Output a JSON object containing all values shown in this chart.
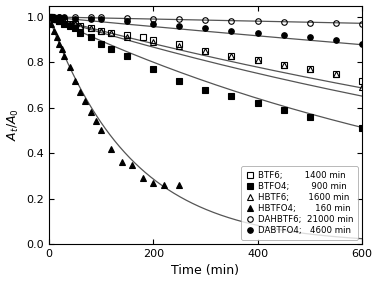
{
  "xlabel": "Time (min)",
  "ylabel": "A$_t$/A$_0$",
  "xlim": [
    0,
    600
  ],
  "ylim": [
    0.0,
    1.05
  ],
  "yticks": [
    0.0,
    0.2,
    0.4,
    0.6,
    0.8,
    1.0
  ],
  "xticks": [
    0,
    200,
    400,
    600
  ],
  "series": [
    {
      "label": "BTF6",
      "tau": 1400,
      "marker": "s",
      "filled": false,
      "data_x": [
        0,
        5,
        10,
        15,
        20,
        30,
        40,
        50,
        60,
        80,
        100,
        120,
        150,
        180,
        200,
        250,
        300,
        350,
        400,
        450,
        500,
        550,
        600
      ],
      "data_y": [
        1.0,
        1.0,
        0.99,
        0.99,
        0.98,
        0.98,
        0.97,
        0.97,
        0.96,
        0.95,
        0.94,
        0.93,
        0.92,
        0.91,
        0.9,
        0.88,
        0.85,
        0.83,
        0.81,
        0.79,
        0.77,
        0.75,
        0.72
      ]
    },
    {
      "label": "BTFO4",
      "tau": 900,
      "marker": "s",
      "filled": true,
      "data_x": [
        0,
        5,
        10,
        15,
        20,
        30,
        40,
        50,
        60,
        80,
        100,
        120,
        150,
        200,
        250,
        300,
        350,
        400,
        450,
        500,
        600
      ],
      "data_y": [
        1.0,
        1.0,
        0.99,
        0.99,
        0.98,
        0.97,
        0.96,
        0.95,
        0.93,
        0.91,
        0.88,
        0.86,
        0.83,
        0.77,
        0.72,
        0.68,
        0.65,
        0.62,
        0.59,
        0.56,
        0.51
      ]
    },
    {
      "label": "HBTF6",
      "tau": 1600,
      "marker": "^",
      "filled": false,
      "data_x": [
        0,
        5,
        10,
        15,
        20,
        30,
        40,
        50,
        60,
        80,
        100,
        120,
        150,
        200,
        250,
        300,
        350,
        400,
        450,
        500,
        550,
        600
      ],
      "data_y": [
        1.0,
        1.0,
        0.99,
        0.99,
        0.99,
        0.98,
        0.97,
        0.97,
        0.96,
        0.95,
        0.94,
        0.93,
        0.91,
        0.89,
        0.87,
        0.85,
        0.83,
        0.81,
        0.79,
        0.77,
        0.75,
        0.69
      ]
    },
    {
      "label": "HBTFO4",
      "tau": 160,
      "marker": "^",
      "filled": true,
      "data_x": [
        0,
        5,
        10,
        15,
        20,
        25,
        30,
        40,
        50,
        60,
        70,
        80,
        90,
        100,
        120,
        140,
        160,
        180,
        200,
        220,
        250
      ],
      "data_y": [
        1.0,
        0.97,
        0.94,
        0.91,
        0.88,
        0.86,
        0.83,
        0.78,
        0.72,
        0.67,
        0.63,
        0.58,
        0.54,
        0.5,
        0.42,
        0.36,
        0.35,
        0.29,
        0.27,
        0.26,
        0.26
      ]
    },
    {
      "label": "DAHBTF6",
      "tau": 21000,
      "marker": "o",
      "filled": false,
      "data_x": [
        0,
        20,
        50,
        80,
        100,
        150,
        200,
        250,
        300,
        350,
        400,
        450,
        500,
        550,
        600
      ],
      "data_y": [
        1.0,
        1.0,
        1.0,
        1.0,
        1.0,
        0.995,
        0.99,
        0.99,
        0.985,
        0.982,
        0.98,
        0.978,
        0.975,
        0.972,
        0.97
      ]
    },
    {
      "label": "DABTFO4",
      "tau": 4600,
      "marker": "o",
      "filled": true,
      "data_x": [
        0,
        10,
        20,
        30,
        50,
        80,
        100,
        150,
        200,
        250,
        300,
        350,
        400,
        450,
        500,
        550,
        600
      ],
      "data_y": [
        1.0,
        1.0,
        1.0,
        1.0,
        0.99,
        0.99,
        0.99,
        0.98,
        0.97,
        0.96,
        0.95,
        0.94,
        0.93,
        0.92,
        0.91,
        0.9,
        0.88
      ]
    }
  ],
  "legend_texts": [
    "BTF6;        1400 min",
    "BTFO4;        900 min",
    "HBTF6;       1600 min",
    "HBTFO4;       160 min",
    "DAHBTF6;  21000 min",
    "DABTFO4;   4600 min"
  ],
  "figsize": [
    3.78,
    2.83
  ],
  "dpi": 100
}
